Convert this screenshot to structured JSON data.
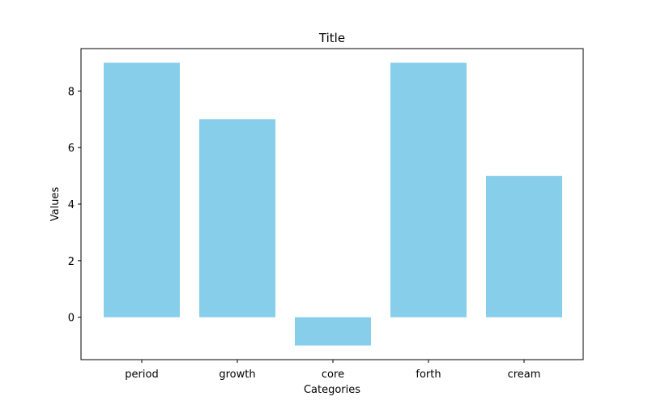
{
  "chart_data": {
    "type": "bar",
    "title": "Title",
    "xlabel": "Categories",
    "ylabel": "Values",
    "categories": [
      "period",
      "growth",
      "core",
      "forth",
      "cream"
    ],
    "values": [
      9,
      7,
      -1,
      9,
      5
    ],
    "ylim": [
      -1.5,
      9.5
    ],
    "yticks": [
      0,
      2,
      4,
      6,
      8
    ],
    "grid": false,
    "bar_color": "#87CEEB"
  }
}
